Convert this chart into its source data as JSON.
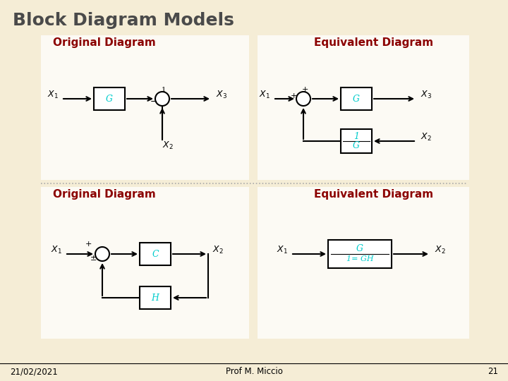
{
  "title": "Block Diagram Models",
  "title_color": "#4a4a4a",
  "title_fontsize": 18,
  "bg_color": "#f5edd6",
  "panel_bg": "#ffffff",
  "label_orig": "Original Diagram",
  "label_equiv": "Equivalent Diagram",
  "label_color": "#8b0000",
  "label_fontsize": 11,
  "block_color": "#00cccc",
  "footer_date": "21/02/2021",
  "footer_prof": "Prof M. Miccio",
  "footer_page": "21",
  "divider_color": "#aaaaaa"
}
